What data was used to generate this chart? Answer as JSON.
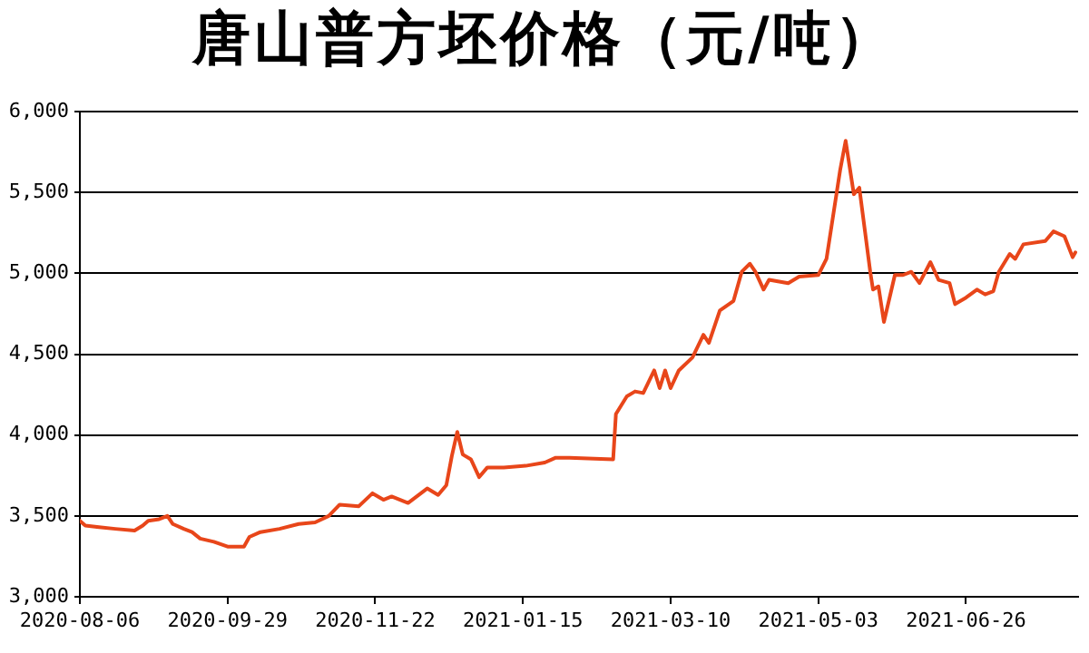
{
  "chart_data": {
    "type": "line",
    "title": "唐山普方坯价格（元/吨）",
    "x": [
      "2020-08-06",
      "2020-08-08",
      "2020-08-13",
      "2020-08-19",
      "2020-08-26",
      "2020-08-29",
      "2020-08-31",
      "2020-09-04",
      "2020-09-07",
      "2020-09-09",
      "2020-09-13",
      "2020-09-16",
      "2020-09-19",
      "2020-09-24",
      "2020-09-29",
      "2020-10-05",
      "2020-10-07",
      "2020-10-11",
      "2020-10-18",
      "2020-10-25",
      "2020-10-31",
      "2020-11-05",
      "2020-11-09",
      "2020-11-16",
      "2020-11-21",
      "2020-11-25",
      "2020-11-28",
      "2020-12-04",
      "2020-12-11",
      "2020-12-15",
      "2020-12-18",
      "2020-12-20",
      "2020-12-22",
      "2020-12-24",
      "2020-12-27",
      "2020-12-30",
      "2021-01-02",
      "2021-01-08",
      "2021-01-16",
      "2021-01-23",
      "2021-01-27",
      "2021-02-01",
      "2021-02-17",
      "2021-02-18",
      "2021-02-22",
      "2021-02-25",
      "2021-02-28",
      "2021-03-04",
      "2021-03-06",
      "2021-03-08",
      "2021-03-10",
      "2021-03-13",
      "2021-03-18",
      "2021-03-22",
      "2021-03-24",
      "2021-03-28",
      "2021-04-02",
      "2021-04-05",
      "2021-04-08",
      "2021-04-10",
      "2021-04-13",
      "2021-04-15",
      "2021-04-22",
      "2021-04-26",
      "2021-05-03",
      "2021-05-06",
      "2021-05-11",
      "2021-05-13",
      "2021-05-16",
      "2021-05-18",
      "2021-05-22",
      "2021-05-23",
      "2021-05-25",
      "2021-05-27",
      "2021-05-31",
      "2021-06-03",
      "2021-06-06",
      "2021-06-09",
      "2021-06-13",
      "2021-06-16",
      "2021-06-20",
      "2021-06-22",
      "2021-06-26",
      "2021-06-30",
      "2021-07-03",
      "2021-07-06",
      "2021-07-08",
      "2021-07-12",
      "2021-07-14",
      "2021-07-17",
      "2021-07-25",
      "2021-07-28",
      "2021-08-01",
      "2021-08-04",
      "2021-08-05"
    ],
    "series": [
      {
        "color": "#e8461a",
        "values": [
          3470,
          3440,
          3430,
          3420,
          3410,
          3440,
          3470,
          3480,
          3500,
          3450,
          3420,
          3400,
          3360,
          3340,
          3310,
          3310,
          3370,
          3400,
          3420,
          3450,
          3460,
          3500,
          3570,
          3560,
          3640,
          3600,
          3620,
          3580,
          3670,
          3630,
          3690,
          3870,
          4020,
          3880,
          3850,
          3740,
          3800,
          3800,
          3810,
          3830,
          3860,
          3860,
          3850,
          4130,
          4240,
          4270,
          4260,
          4400,
          4290,
          4400,
          4290,
          4400,
          4480,
          4620,
          4570,
          4770,
          4830,
          5010,
          5060,
          5010,
          4900,
          4960,
          4940,
          4980,
          4990,
          5090,
          5640,
          5820,
          5490,
          5530,
          5010,
          4900,
          4920,
          4700,
          4990,
          4990,
          5010,
          4940,
          5070,
          4960,
          4940,
          4810,
          4850,
          4900,
          4870,
          4890,
          5010,
          5120,
          5090,
          5180,
          5200,
          5260,
          5230,
          5100,
          5130
        ]
      }
    ],
    "xlim": [
      "2020-08-06",
      "2021-08-06"
    ],
    "xticks": [
      "2020-08-06",
      "2020-09-29",
      "2020-11-22",
      "2021-01-15",
      "2021-03-10",
      "2021-05-03",
      "2021-06-26"
    ],
    "ylim": [
      3000,
      6000
    ],
    "yticks": [
      {
        "value": 3000,
        "label": "3,000"
      },
      {
        "value": 3500,
        "label": "3,500"
      },
      {
        "value": 4000,
        "label": "4,000"
      },
      {
        "value": 4500,
        "label": "4,500"
      },
      {
        "value": 5000,
        "label": "5,000"
      },
      {
        "value": 5500,
        "label": "5,500"
      },
      {
        "value": 6000,
        "label": "6,000"
      }
    ],
    "grid": "y",
    "legend": false,
    "marker": "none",
    "line_style": "solid"
  }
}
